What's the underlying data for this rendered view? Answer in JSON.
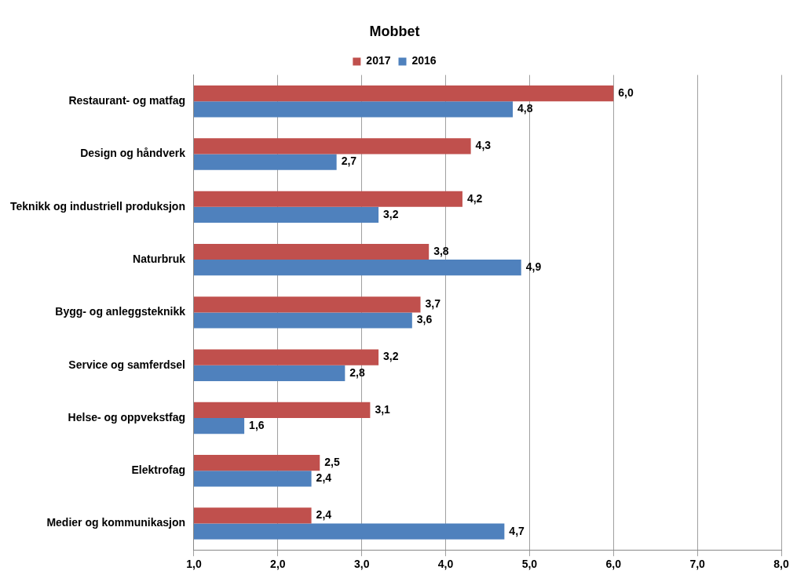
{
  "chart_data": {
    "type": "bar",
    "orientation": "horizontal",
    "title": "Mobbet",
    "categories": [
      "Restaurant- og matfag",
      "Design og håndverk",
      "Teknikk og industriell produksjon",
      "Naturbruk",
      "Bygg- og anleggsteknikk",
      "Service og samferdsel",
      "Helse- og oppvekstfag",
      "Elektrofag",
      "Medier og kommunikasjon"
    ],
    "series": [
      {
        "name": "2017",
        "color": "#c0504d",
        "values": [
          6.0,
          4.3,
          4.2,
          3.8,
          3.7,
          3.2,
          3.1,
          2.5,
          2.4
        ],
        "value_labels": [
          "6,0",
          "4,3",
          "4,2",
          "3,8",
          "3,7",
          "3,2",
          "3,1",
          "2,5",
          "2,4"
        ]
      },
      {
        "name": "2016",
        "color": "#4f81bd",
        "values": [
          4.8,
          2.7,
          3.2,
          4.9,
          3.6,
          2.8,
          1.6,
          2.4,
          4.7
        ],
        "value_labels": [
          "4,8",
          "2,7",
          "3,2",
          "4,9",
          "3,6",
          "2,8",
          "1,6",
          "2,4",
          "4,7"
        ]
      }
    ],
    "xlim": [
      1,
      8
    ],
    "xticks": [
      {
        "value": 1,
        "label": "1,0"
      },
      {
        "value": 2,
        "label": "2,0"
      },
      {
        "value": 3,
        "label": "3,0"
      },
      {
        "value": 4,
        "label": "4,0"
      },
      {
        "value": 5,
        "label": "5,0"
      },
      {
        "value": 6,
        "label": "6,0"
      },
      {
        "value": 7,
        "label": "7,0"
      },
      {
        "value": 8,
        "label": "8,0"
      }
    ],
    "grid": "x",
    "legend": "top"
  }
}
